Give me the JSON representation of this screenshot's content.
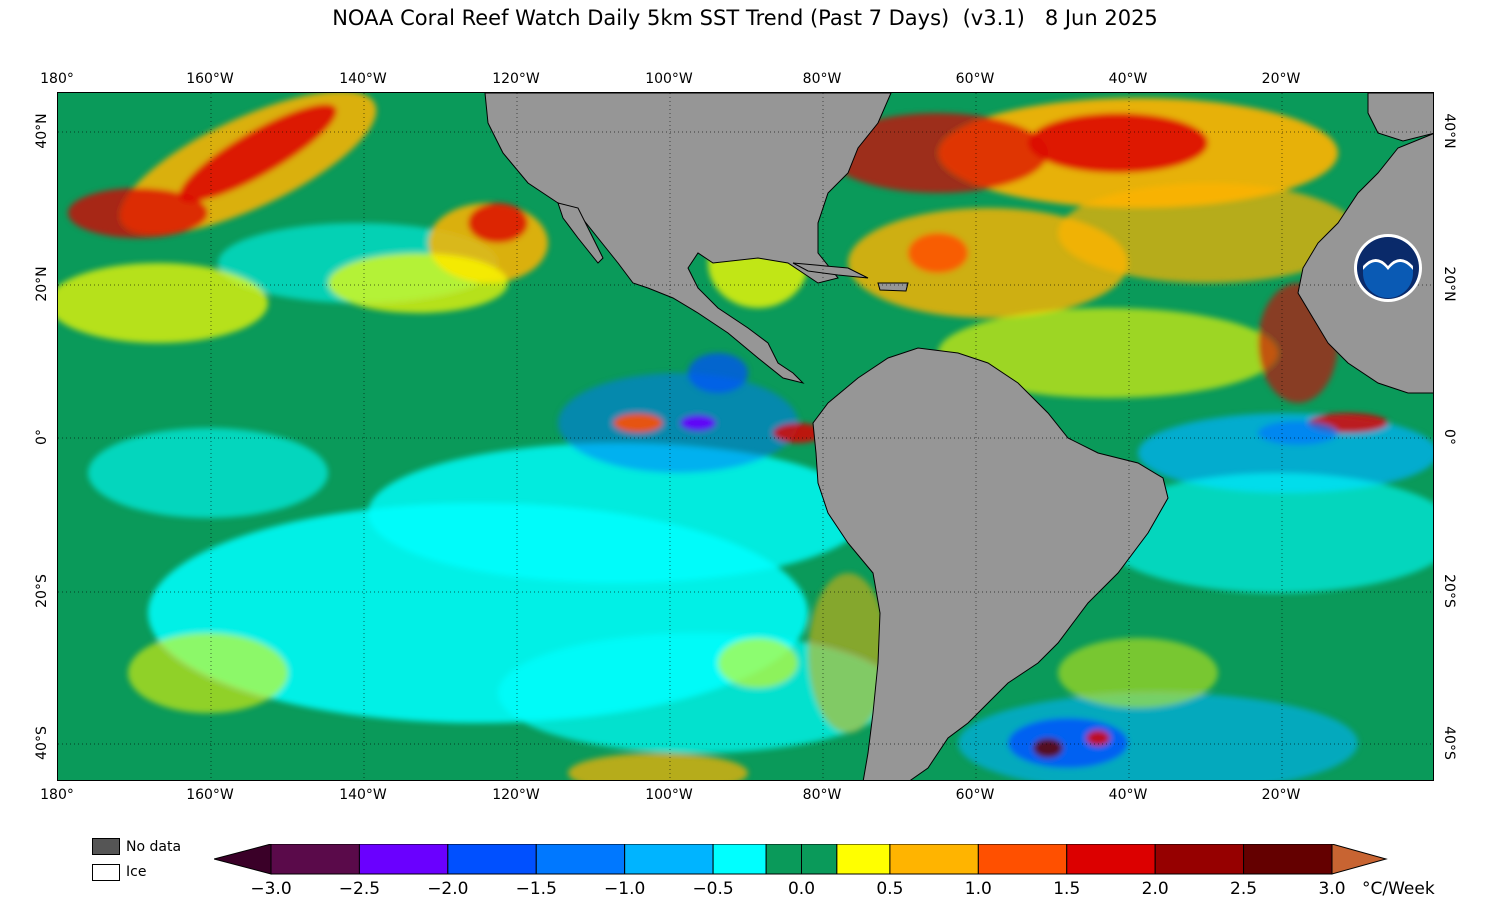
{
  "title": "NOAA Coral Reef Watch Daily 5km SST Trend (Past 7 Days)  (v3.1)   8 Jun 2025",
  "lon_labels": [
    "180°",
    "160°W",
    "140°W",
    "120°W",
    "100°W",
    "80°W",
    "60°W",
    "40°W",
    "20°W"
  ],
  "lat_labels": [
    "40°N",
    "20°N",
    "0°",
    "20°S",
    "40°S"
  ],
  "legend": {
    "no_data": "No data",
    "ice": "Ice"
  },
  "colorbar": {
    "ticks": [
      "−3.0",
      "−2.5",
      "−2.0",
      "−1.5",
      "−1.0",
      "−0.5",
      "0.0",
      "0.5",
      "1.0",
      "1.5",
      "2.0",
      "2.5",
      "3.0"
    ],
    "units": "°C/Week",
    "colors": [
      "#5a0a4a",
      "#6a00ff",
      "#0050ff",
      "#0078ff",
      "#00b4ff",
      "#00ffff",
      "#0a9a5a",
      "#0a9a5a",
      "#ffff00",
      "#ffb400",
      "#ff5000",
      "#dc0000",
      "#960000",
      "#640000"
    ],
    "under_color": "#3a0028",
    "over_color": "#c86432"
  },
  "colors": {
    "land": "#969696",
    "no_data": "#555555",
    "ice": "#ffffff",
    "ocean_base": "#0a9a5a"
  },
  "logo_icon": "noaa-logo-icon"
}
